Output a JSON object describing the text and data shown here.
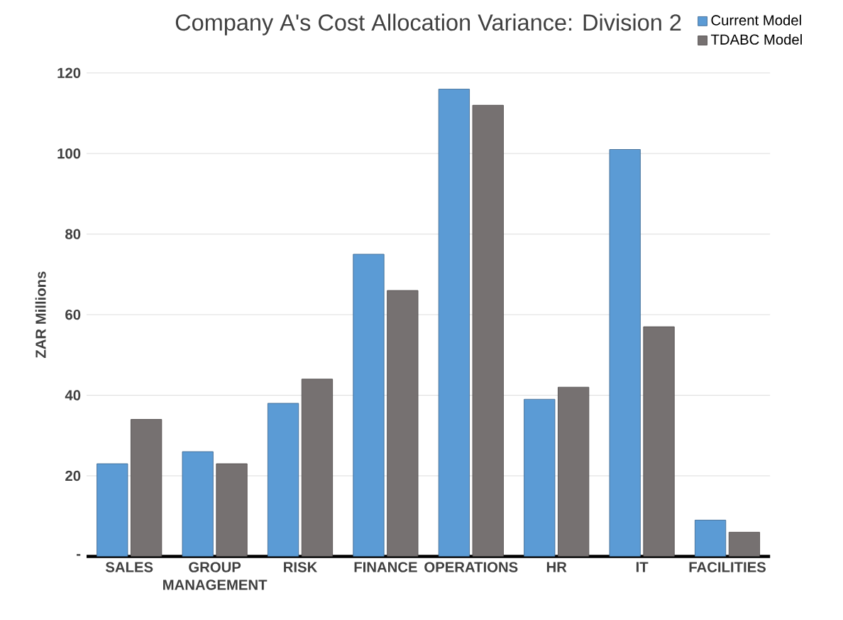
{
  "chart_data": {
    "type": "bar",
    "title": "Company A's Cost Allocation Variance:  Division 2",
    "ylabel": "ZAR Millions",
    "categories": [
      "SALES",
      "GROUP MANAGEMENT",
      "RISK",
      "FINANCE",
      "OPERATIONS",
      "HR",
      "IT",
      "FACILITIES"
    ],
    "series": [
      {
        "name": "Current Model",
        "color": "#5b9bd5",
        "values": [
          23,
          26,
          38,
          75,
          116,
          39,
          101,
          9
        ]
      },
      {
        "name": "TDABC Model",
        "color": "#767171",
        "values": [
          34,
          23,
          44,
          66,
          112,
          42,
          57,
          6
        ]
      }
    ],
    "ylim": [
      0,
      120
    ],
    "yticks": [
      {
        "value": 0,
        "label": "-"
      },
      20,
      40,
      60,
      80,
      100,
      120
    ],
    "grid": "y",
    "legend": "top right"
  }
}
